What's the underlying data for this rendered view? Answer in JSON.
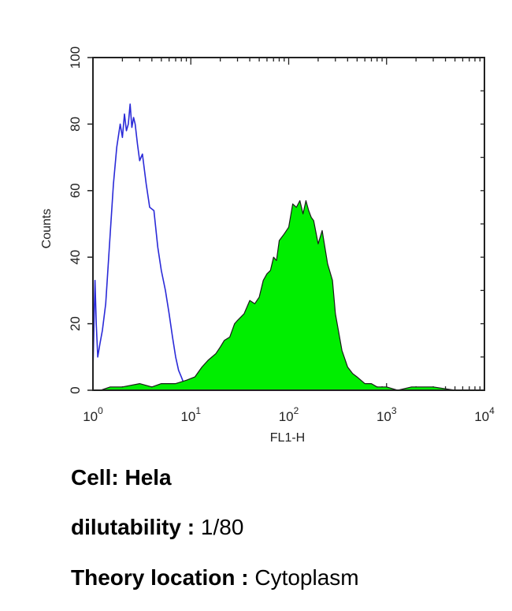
{
  "chart_data": {
    "type": "area",
    "xlabel": "FL1-H",
    "ylabel": "Counts",
    "xscale": "log",
    "xlim": [
      1,
      10000
    ],
    "ylim": [
      0,
      100
    ],
    "xticks": [
      {
        "base": "10",
        "exp": "0"
      },
      {
        "base": "10",
        "exp": "1"
      },
      {
        "base": "10",
        "exp": "2"
      },
      {
        "base": "10",
        "exp": "3"
      },
      {
        "base": "10",
        "exp": "4"
      }
    ],
    "yticks": [
      0,
      20,
      40,
      60,
      80,
      100
    ],
    "series": [
      {
        "style": "outline",
        "color": "#2a2ad8",
        "x": [
          1.0,
          1.05,
          1.08,
          1.12,
          1.18,
          1.25,
          1.35,
          1.5,
          1.62,
          1.75,
          1.9,
          2.0,
          2.1,
          2.2,
          2.3,
          2.4,
          2.5,
          2.6,
          2.7,
          2.85,
          3.0,
          3.2,
          3.5,
          3.8,
          4.2,
          4.6,
          5.0,
          5.5,
          6.0,
          6.5,
          7.0,
          7.5,
          8.0,
          8.5,
          9.0
        ],
        "y": [
          6,
          33,
          20,
          10,
          14,
          18,
          26,
          47,
          62,
          73,
          80,
          76,
          83,
          78,
          80,
          86,
          79,
          82,
          80,
          74,
          69,
          71,
          62,
          55,
          54,
          43,
          36,
          30,
          23,
          16,
          10,
          6,
          4,
          2,
          1
        ]
      },
      {
        "style": "filled",
        "color": "#00ee00",
        "x": [
          1.2,
          1.5,
          2.0,
          3.0,
          4.0,
          5.0,
          7.0,
          9.0,
          11.0,
          13.0,
          15.0,
          18.0,
          20.0,
          22.0,
          25.0,
          28.0,
          30.0,
          35.0,
          40.0,
          45.0,
          50.0,
          55.0,
          60.0,
          65.0,
          70.0,
          75.0,
          80.0,
          90.0,
          100.0,
          110.0,
          120.0,
          130.0,
          140.0,
          150.0,
          160.0,
          170.0,
          180.0,
          200.0,
          220.0,
          250.0,
          280.0,
          300.0,
          350.0,
          400.0,
          450.0,
          500.0,
          600.0,
          700.0,
          800.0,
          1000.0,
          1300.0,
          1800.0,
          3000.0,
          5000.0
        ],
        "y": [
          0,
          1,
          1,
          2,
          1,
          2,
          2,
          3,
          4,
          7,
          9,
          11,
          13,
          15,
          16,
          20,
          21,
          23,
          27,
          26,
          28,
          33,
          35,
          36,
          40,
          39,
          45,
          47,
          49,
          56,
          55,
          57,
          53,
          57,
          54,
          52,
          51,
          44,
          48,
          38,
          33,
          23,
          12,
          7,
          5,
          4,
          2,
          2,
          1,
          1,
          0,
          1,
          1,
          0
        ]
      }
    ]
  },
  "caption": {
    "cell_label": "Cell:",
    "cell_value": "Hela",
    "dilutability_label": "dilutability :",
    "dilutability_value": "1/80",
    "theory_label": "Theory location :",
    "theory_value": "Cytoplasm"
  }
}
